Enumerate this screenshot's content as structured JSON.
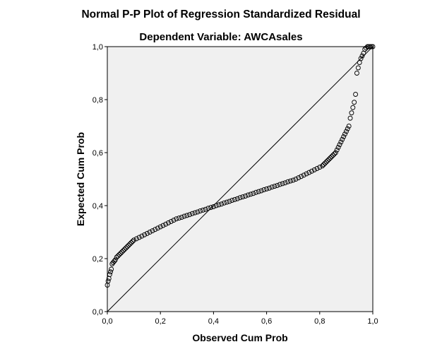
{
  "chart_data": {
    "type": "scatter",
    "title": "Normal P-P Plot of Regression Standardized Residual",
    "subtitle": "Dependent Variable: AWCAsales",
    "xlabel": "Observed Cum Prob",
    "ylabel": "Expected Cum Prob",
    "xlim": [
      0,
      1
    ],
    "ylim": [
      0,
      1
    ],
    "xticks": [
      "0,0",
      "0,2",
      "0,4",
      "0,6",
      "0,8",
      "1,0"
    ],
    "yticks": [
      "0,0",
      "0,2",
      "0,4",
      "0,6",
      "0,8",
      "1,0"
    ],
    "grid": false,
    "reference_line": [
      [
        0,
        0
      ],
      [
        1,
        1
      ]
    ],
    "plot_background": "#f0f0f0",
    "marker_color": "#000000",
    "points": [
      [
        0.0,
        0.1
      ],
      [
        0.003,
        0.115
      ],
      [
        0.006,
        0.125
      ],
      [
        0.009,
        0.14
      ],
      [
        0.012,
        0.15
      ],
      [
        0.015,
        0.16
      ],
      [
        0.018,
        0.18
      ],
      [
        0.022,
        0.185
      ],
      [
        0.026,
        0.19
      ],
      [
        0.03,
        0.195
      ],
      [
        0.035,
        0.205
      ],
      [
        0.04,
        0.21
      ],
      [
        0.045,
        0.215
      ],
      [
        0.05,
        0.22
      ],
      [
        0.055,
        0.225
      ],
      [
        0.06,
        0.23
      ],
      [
        0.065,
        0.235
      ],
      [
        0.07,
        0.24
      ],
      [
        0.075,
        0.245
      ],
      [
        0.08,
        0.25
      ],
      [
        0.085,
        0.255
      ],
      [
        0.09,
        0.26
      ],
      [
        0.095,
        0.265
      ],
      [
        0.1,
        0.27
      ],
      [
        0.11,
        0.275
      ],
      [
        0.12,
        0.28
      ],
      [
        0.13,
        0.285
      ],
      [
        0.14,
        0.29
      ],
      [
        0.15,
        0.295
      ],
      [
        0.16,
        0.3
      ],
      [
        0.17,
        0.305
      ],
      [
        0.18,
        0.31
      ],
      [
        0.19,
        0.315
      ],
      [
        0.2,
        0.32
      ],
      [
        0.21,
        0.325
      ],
      [
        0.22,
        0.33
      ],
      [
        0.23,
        0.335
      ],
      [
        0.24,
        0.34
      ],
      [
        0.25,
        0.345
      ],
      [
        0.26,
        0.35
      ],
      [
        0.27,
        0.353
      ],
      [
        0.28,
        0.356
      ],
      [
        0.29,
        0.36
      ],
      [
        0.3,
        0.363
      ],
      [
        0.31,
        0.366
      ],
      [
        0.32,
        0.37
      ],
      [
        0.33,
        0.373
      ],
      [
        0.34,
        0.376
      ],
      [
        0.35,
        0.38
      ],
      [
        0.36,
        0.383
      ],
      [
        0.37,
        0.386
      ],
      [
        0.38,
        0.39
      ],
      [
        0.39,
        0.393
      ],
      [
        0.4,
        0.396
      ],
      [
        0.41,
        0.4
      ],
      [
        0.42,
        0.403
      ],
      [
        0.43,
        0.406
      ],
      [
        0.44,
        0.41
      ],
      [
        0.45,
        0.413
      ],
      [
        0.46,
        0.416
      ],
      [
        0.47,
        0.42
      ],
      [
        0.48,
        0.423
      ],
      [
        0.49,
        0.426
      ],
      [
        0.5,
        0.43
      ],
      [
        0.51,
        0.433
      ],
      [
        0.52,
        0.436
      ],
      [
        0.53,
        0.44
      ],
      [
        0.54,
        0.443
      ],
      [
        0.55,
        0.446
      ],
      [
        0.56,
        0.45
      ],
      [
        0.57,
        0.453
      ],
      [
        0.58,
        0.456
      ],
      [
        0.59,
        0.46
      ],
      [
        0.6,
        0.463
      ],
      [
        0.61,
        0.466
      ],
      [
        0.62,
        0.47
      ],
      [
        0.63,
        0.473
      ],
      [
        0.64,
        0.476
      ],
      [
        0.65,
        0.48
      ],
      [
        0.66,
        0.483
      ],
      [
        0.67,
        0.486
      ],
      [
        0.68,
        0.49
      ],
      [
        0.69,
        0.493
      ],
      [
        0.7,
        0.496
      ],
      [
        0.71,
        0.5
      ],
      [
        0.72,
        0.505
      ],
      [
        0.73,
        0.51
      ],
      [
        0.74,
        0.515
      ],
      [
        0.75,
        0.52
      ],
      [
        0.76,
        0.525
      ],
      [
        0.77,
        0.53
      ],
      [
        0.78,
        0.535
      ],
      [
        0.79,
        0.54
      ],
      [
        0.8,
        0.545
      ],
      [
        0.81,
        0.55
      ],
      [
        0.815,
        0.555
      ],
      [
        0.82,
        0.56
      ],
      [
        0.825,
        0.565
      ],
      [
        0.83,
        0.57
      ],
      [
        0.835,
        0.575
      ],
      [
        0.84,
        0.58
      ],
      [
        0.845,
        0.585
      ],
      [
        0.85,
        0.59
      ],
      [
        0.855,
        0.595
      ],
      [
        0.86,
        0.6
      ],
      [
        0.865,
        0.61
      ],
      [
        0.87,
        0.62
      ],
      [
        0.875,
        0.63
      ],
      [
        0.88,
        0.64
      ],
      [
        0.885,
        0.65
      ],
      [
        0.89,
        0.66
      ],
      [
        0.895,
        0.67
      ],
      [
        0.9,
        0.68
      ],
      [
        0.905,
        0.69
      ],
      [
        0.91,
        0.7
      ],
      [
        0.915,
        0.73
      ],
      [
        0.92,
        0.75
      ],
      [
        0.925,
        0.77
      ],
      [
        0.93,
        0.79
      ],
      [
        0.935,
        0.82
      ],
      [
        0.94,
        0.9
      ],
      [
        0.945,
        0.92
      ],
      [
        0.95,
        0.94
      ],
      [
        0.955,
        0.955
      ],
      [
        0.96,
        0.965
      ],
      [
        0.965,
        0.975
      ],
      [
        0.97,
        0.99
      ],
      [
        0.975,
        0.995
      ],
      [
        0.98,
        1.0
      ],
      [
        0.985,
        1.0
      ],
      [
        0.99,
        1.0
      ],
      [
        0.995,
        1.0
      ],
      [
        1.0,
        1.0
      ]
    ]
  }
}
